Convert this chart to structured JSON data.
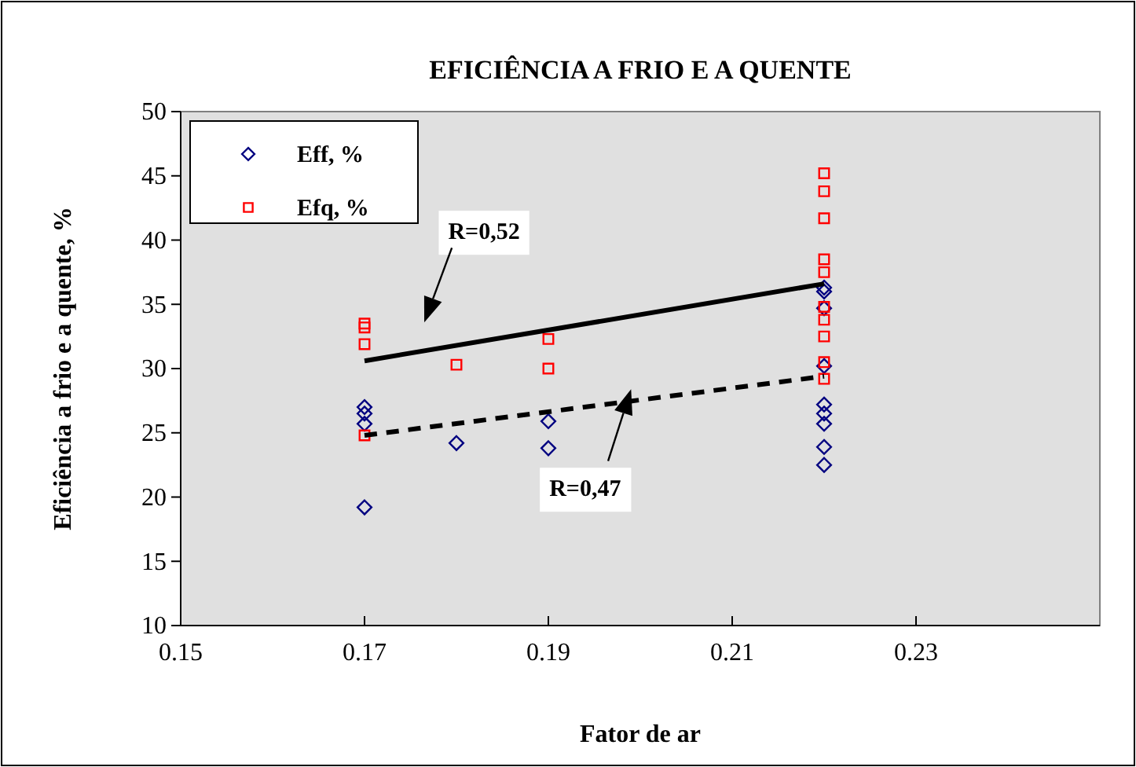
{
  "chart_data": {
    "type": "scatter",
    "title": "EFICIÊNCIA A FRIO E A QUENTE",
    "xlabel": "Fator de ar",
    "ylabel": "Eficiência a frio e a quente, %",
    "xlim": [
      0.15,
      0.25
    ],
    "xticks": [
      0.15,
      0.17,
      0.19,
      0.21,
      0.23
    ],
    "ylim": [
      10,
      50
    ],
    "yticks": [
      10,
      15,
      20,
      25,
      30,
      35,
      40,
      45,
      50
    ],
    "grid": false,
    "legend": "top left",
    "series": [
      {
        "name": "Eff, %",
        "marker": "diamond",
        "color": "#000080",
        "x": [
          0.17,
          0.17,
          0.17,
          0.17,
          0.18,
          0.19,
          0.19,
          0.22,
          0.22,
          0.22,
          0.22,
          0.22,
          0.22,
          0.22,
          0.22,
          0.22
        ],
        "values": [
          27.0,
          26.5,
          25.7,
          19.2,
          24.2,
          25.9,
          23.8,
          36.3,
          36.0,
          34.7,
          30.2,
          27.2,
          26.5,
          25.7,
          23.9,
          22.5
        ]
      },
      {
        "name": "Efq, %",
        "marker": "square",
        "color": "#ff0000",
        "x": [
          0.17,
          0.17,
          0.17,
          0.17,
          0.18,
          0.19,
          0.19,
          0.22,
          0.22,
          0.22,
          0.22,
          0.22,
          0.22,
          0.22,
          0.22,
          0.22,
          0.22
        ],
        "values": [
          33.5,
          33.2,
          31.9,
          24.8,
          30.3,
          32.3,
          30.0,
          45.2,
          43.8,
          41.7,
          38.5,
          37.5,
          34.8,
          33.8,
          32.5,
          30.5,
          29.2
        ]
      },
      {
        "type": "line",
        "line_style": "solid",
        "color": "#000000",
        "x": [
          0.17,
          0.22
        ],
        "values": [
          30.6,
          36.6
        ]
      },
      {
        "type": "line",
        "line_style": "dashed",
        "color": "#000000",
        "x": [
          0.17,
          0.22
        ],
        "values": [
          24.8,
          29.4
        ]
      }
    ],
    "annotations": [
      "R=0,52",
      "R=0,47"
    ]
  }
}
